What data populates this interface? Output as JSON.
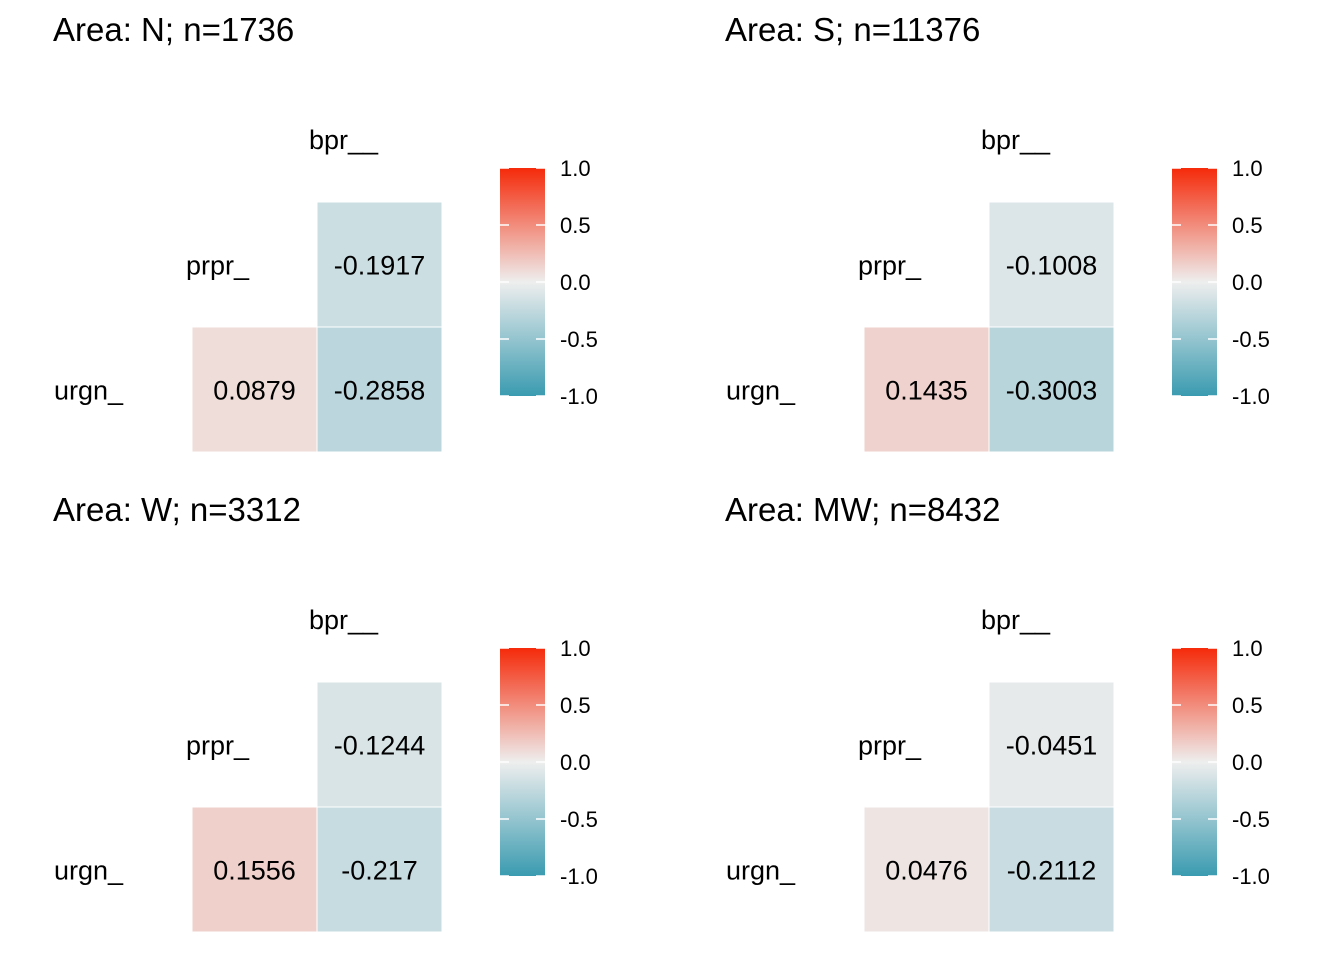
{
  "chart_data": [
    {
      "type": "heatmap",
      "title": "Area: N; n=1736",
      "x_labels": [
        "bpr__"
      ],
      "y_labels": [
        "prpr_",
        "urgn_"
      ],
      "cells": [
        {
          "row": "prpr_",
          "col": "bpr__",
          "value": -0.1917,
          "label": "-0.1917"
        },
        {
          "row": "urgn_",
          "col": "prpr_",
          "value": 0.0879,
          "label": "0.0879"
        },
        {
          "row": "urgn_",
          "col": "bpr__",
          "value": -0.2858,
          "label": "-0.2858"
        }
      ],
      "legend": {
        "min": -1,
        "max": 1,
        "ticks": [
          "1.0",
          "0.5",
          "0.0",
          "-0.5",
          "-1.0"
        ],
        "placement": "right"
      }
    },
    {
      "type": "heatmap",
      "title": "Area: S; n=11376",
      "x_labels": [
        "bpr__"
      ],
      "y_labels": [
        "prpr_",
        "urgn_"
      ],
      "cells": [
        {
          "row": "prpr_",
          "col": "bpr__",
          "value": -0.1008,
          "label": "-0.1008"
        },
        {
          "row": "urgn_",
          "col": "prpr_",
          "value": 0.1435,
          "label": "0.1435"
        },
        {
          "row": "urgn_",
          "col": "bpr__",
          "value": -0.3003,
          "label": "-0.3003"
        }
      ],
      "legend": {
        "min": -1,
        "max": 1,
        "ticks": [
          "1.0",
          "0.5",
          "0.0",
          "-0.5",
          "-1.0"
        ],
        "placement": "right"
      }
    },
    {
      "type": "heatmap",
      "title": "Area: W; n=3312",
      "x_labels": [
        "bpr__"
      ],
      "y_labels": [
        "prpr_",
        "urgn_"
      ],
      "cells": [
        {
          "row": "prpr_",
          "col": "bpr__",
          "value": -0.1244,
          "label": "-0.1244"
        },
        {
          "row": "urgn_",
          "col": "prpr_",
          "value": 0.1556,
          "label": "0.1556"
        },
        {
          "row": "urgn_",
          "col": "bpr__",
          "value": -0.217,
          "label": "-0.217"
        }
      ],
      "legend": {
        "min": -1,
        "max": 1,
        "ticks": [
          "1.0",
          "0.5",
          "0.0",
          "-0.5",
          "-1.0"
        ],
        "placement": "right"
      }
    },
    {
      "type": "heatmap",
      "title": "Area: MW; n=8432",
      "x_labels": [
        "bpr__"
      ],
      "y_labels": [
        "prpr_",
        "urgn_"
      ],
      "cells": [
        {
          "row": "prpr_",
          "col": "bpr__",
          "value": -0.0451,
          "label": "-0.0451"
        },
        {
          "row": "urgn_",
          "col": "prpr_",
          "value": 0.0476,
          "label": "0.0476"
        },
        {
          "row": "urgn_",
          "col": "bpr__",
          "value": -0.2112,
          "label": "-0.2112"
        }
      ],
      "legend": {
        "min": -1,
        "max": 1,
        "ticks": [
          "1.0",
          "0.5",
          "0.0",
          "-0.5",
          "-1.0"
        ],
        "placement": "right"
      }
    }
  ],
  "colors": {
    "high": "#f52a0a",
    "mid": "#eeeeee",
    "low": "#3a9bb0",
    "tick": "#ffffff",
    "cell_border": "#ffffff"
  }
}
